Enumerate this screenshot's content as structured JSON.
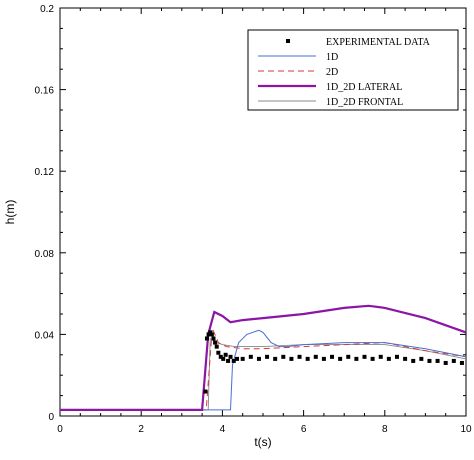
{
  "chart_data": {
    "type": "line",
    "xlabel": "t(s)",
    "ylabel": "h(m)",
    "xlim": [
      0,
      10
    ],
    "ylim": [
      0,
      0.2
    ],
    "x_ticks": [
      "0",
      "2",
      "4",
      "6",
      "8",
      "10"
    ],
    "y_ticks": [
      "0",
      "0.04",
      "0.08",
      "0.12",
      "0.16",
      "0.2"
    ],
    "grid": false,
    "legend_position": "top-right",
    "series": [
      {
        "name": "EXPERIMENTAL DATA",
        "style": "markers",
        "color": "#000000",
        "x": [
          3.58,
          3.62,
          3.66,
          3.7,
          3.74,
          3.78,
          3.82,
          3.86,
          3.9,
          3.96,
          4.02,
          4.08,
          4.14,
          4.2,
          4.28,
          4.36,
          4.5,
          4.7,
          4.9,
          5.1,
          5.3,
          5.5,
          5.7,
          5.9,
          6.1,
          6.3,
          6.5,
          6.7,
          6.9,
          7.1,
          7.3,
          7.5,
          7.7,
          7.9,
          8.1,
          8.3,
          8.5,
          8.7,
          8.9,
          9.1,
          9.3,
          9.5,
          9.7,
          9.9
        ],
        "y": [
          0.012,
          0.038,
          0.04,
          0.041,
          0.04,
          0.038,
          0.036,
          0.034,
          0.031,
          0.029,
          0.028,
          0.03,
          0.027,
          0.029,
          0.027,
          0.028,
          0.028,
          0.029,
          0.028,
          0.029,
          0.028,
          0.029,
          0.028,
          0.029,
          0.028,
          0.029,
          0.028,
          0.029,
          0.028,
          0.029,
          0.028,
          0.029,
          0.028,
          0.029,
          0.028,
          0.029,
          0.028,
          0.027,
          0.028,
          0.027,
          0.027,
          0.026,
          0.027,
          0.026
        ]
      },
      {
        "name": "1D",
        "style": "solid",
        "color": "#4a6fd4",
        "x": [
          0,
          4.2,
          4.25,
          4.4,
          4.6,
          4.9,
          5.0,
          5.2,
          5.4,
          5.6,
          6.0,
          7.0,
          8.0,
          9.0,
          10.0
        ],
        "y": [
          0.003,
          0.003,
          0.025,
          0.036,
          0.04,
          0.042,
          0.041,
          0.036,
          0.034,
          0.034,
          0.035,
          0.036,
          0.036,
          0.033,
          0.029
        ]
      },
      {
        "name": "2D",
        "style": "dashed",
        "color": "#d43a3a",
        "x": [
          0,
          3.6,
          3.75,
          3.9,
          4.1,
          4.5,
          5.0,
          6.0,
          7.0,
          8.0,
          9.0,
          10.0
        ],
        "y": [
          0.003,
          0.003,
          0.043,
          0.036,
          0.034,
          0.033,
          0.033,
          0.034,
          0.035,
          0.036,
          0.032,
          0.029
        ]
      },
      {
        "name": "1D_2D LATERAL",
        "style": "solid-thick",
        "color": "#8b16a6",
        "x": [
          0,
          3.5,
          3.65,
          3.8,
          4.0,
          4.2,
          4.5,
          5.0,
          6.0,
          7.0,
          7.6,
          8.0,
          9.0,
          10.0
        ],
        "y": [
          0.003,
          0.003,
          0.04,
          0.051,
          0.049,
          0.046,
          0.047,
          0.048,
          0.05,
          0.053,
          0.054,
          0.053,
          0.048,
          0.041
        ]
      },
      {
        "name": "1D_2D FRONTAL",
        "style": "solid-thin",
        "color": "#888888",
        "x": [
          0,
          3.65,
          3.7,
          3.85,
          4.0,
          4.3,
          5.0,
          6.0,
          7.0,
          8.0,
          9.0,
          10.0
        ],
        "y": [
          0.003,
          0.003,
          0.038,
          0.036,
          0.035,
          0.034,
          0.034,
          0.035,
          0.035,
          0.035,
          0.032,
          0.028
        ]
      }
    ]
  }
}
